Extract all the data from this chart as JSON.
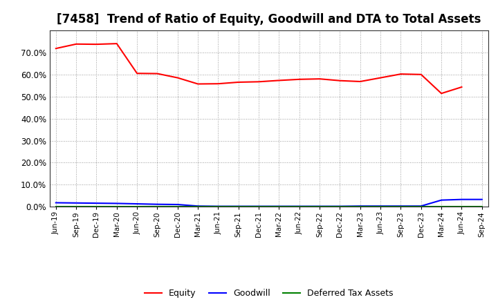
{
  "title": "[7458]  Trend of Ratio of Equity, Goodwill and DTA to Total Assets",
  "x_labels": [
    "Jun-19",
    "Sep-19",
    "Dec-19",
    "Mar-20",
    "Jun-20",
    "Sep-20",
    "Dec-20",
    "Mar-21",
    "Jun-21",
    "Sep-21",
    "Dec-21",
    "Mar-22",
    "Jun-22",
    "Sep-22",
    "Dec-22",
    "Mar-23",
    "Jun-23",
    "Sep-23",
    "Dec-23",
    "Mar-24",
    "Jun-24",
    "Sep-24"
  ],
  "equity": [
    0.718,
    0.738,
    0.737,
    0.74,
    0.605,
    0.604,
    0.585,
    0.557,
    0.558,
    0.565,
    0.567,
    0.573,
    0.578,
    0.58,
    0.572,
    0.568,
    0.585,
    0.602,
    0.6,
    0.514,
    0.543,
    null
  ],
  "goodwill": [
    0.018,
    0.017,
    0.016,
    0.015,
    0.013,
    0.011,
    0.01,
    0.003,
    0.002,
    0.002,
    0.002,
    0.002,
    0.002,
    0.002,
    0.002,
    0.003,
    0.003,
    0.003,
    0.003,
    0.03,
    0.033,
    0.033
  ],
  "dta": [
    0.0,
    0.0,
    0.0,
    0.0,
    0.0,
    0.0,
    0.0,
    0.0,
    0.0,
    0.0,
    0.0,
    0.0,
    0.0,
    0.0,
    0.0,
    0.0,
    0.0,
    0.0,
    0.0,
    0.0,
    0.0,
    0.0
  ],
  "equity_color": "#ff0000",
  "goodwill_color": "#0000ff",
  "dta_color": "#008000",
  "ylim": [
    0.0,
    0.8
  ],
  "yticks": [
    0.0,
    0.1,
    0.2,
    0.3,
    0.4,
    0.5,
    0.6,
    0.7
  ],
  "background_color": "#ffffff",
  "grid_color": "#999999",
  "title_fontsize": 12
}
